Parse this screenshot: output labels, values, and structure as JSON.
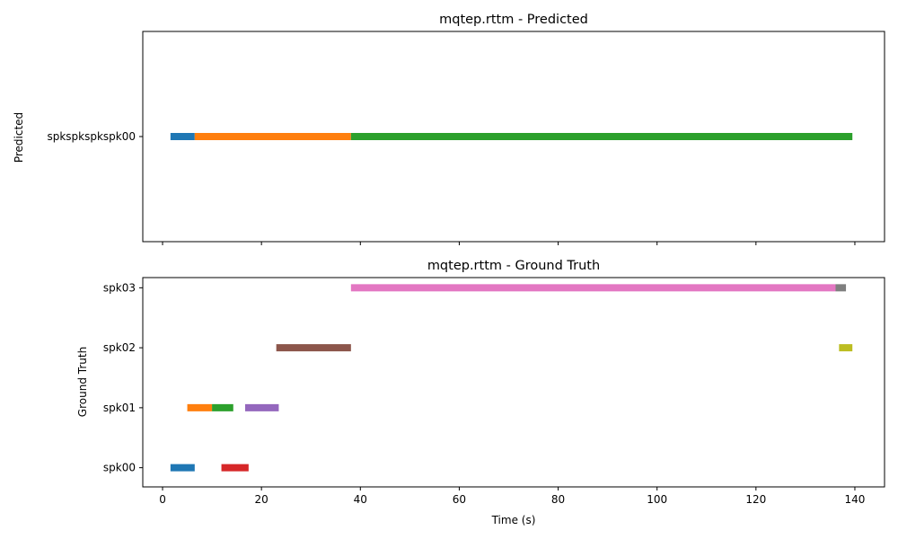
{
  "chart_data": [
    {
      "type": "timeline",
      "title": "mqtep.rttm - Predicted",
      "ylabel": "Predicted",
      "xlabel": "",
      "xlim": [
        -4,
        146
      ],
      "ylim": [
        -0.5,
        0.5
      ],
      "xticks": [
        0,
        20,
        40,
        60,
        80,
        100,
        120,
        140
      ],
      "show_xtick_labels": false,
      "rows": [
        "spkspkspkspk00"
      ],
      "segments": [
        {
          "row": 0,
          "start": 1.6,
          "end": 6.5,
          "color": "#1f77b4"
        },
        {
          "row": 0,
          "start": 6.5,
          "end": 38.1,
          "color": "#ff7f0e"
        },
        {
          "row": 0,
          "start": 38.1,
          "end": 139.5,
          "color": "#2ca02c"
        }
      ]
    },
    {
      "type": "timeline",
      "title": "mqtep.rttm - Ground Truth",
      "ylabel": "Ground Truth",
      "xlabel": "Time (s)",
      "xlim": [
        -4,
        146
      ],
      "ylim": [
        -0.32,
        3.17
      ],
      "xticks": [
        0,
        20,
        40,
        60,
        80,
        100,
        120,
        140
      ],
      "show_xtick_labels": true,
      "rows": [
        "spk00",
        "spk01",
        "spk02",
        "spk03"
      ],
      "segments": [
        {
          "row": 0,
          "start": 1.6,
          "end": 6.5,
          "color": "#1f77b4"
        },
        {
          "row": 1,
          "start": 5.0,
          "end": 10.0,
          "color": "#ff7f0e"
        },
        {
          "row": 1,
          "start": 10.0,
          "end": 14.3,
          "color": "#2ca02c"
        },
        {
          "row": 0,
          "start": 11.9,
          "end": 17.4,
          "color": "#d62728"
        },
        {
          "row": 1,
          "start": 16.7,
          "end": 23.5,
          "color": "#9467bd"
        },
        {
          "row": 2,
          "start": 23.0,
          "end": 38.1,
          "color": "#8c564b"
        },
        {
          "row": 3,
          "start": 38.1,
          "end": 136.1,
          "color": "#e377c2"
        },
        {
          "row": 3,
          "start": 136.1,
          "end": 138.2,
          "color": "#7f7f7f"
        },
        {
          "row": 2,
          "start": 136.8,
          "end": 139.5,
          "color": "#bcbd22"
        }
      ]
    }
  ]
}
